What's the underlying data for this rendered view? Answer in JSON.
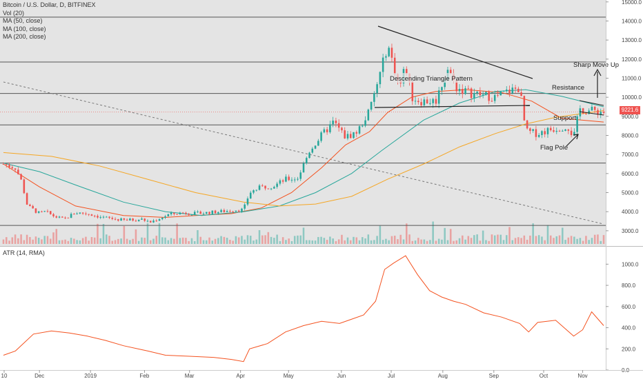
{
  "legend": {
    "symbol": "Bitcoin / U.S. Dollar, D, BITFINEX",
    "vol": "Vol (20)",
    "ma50": "MA (50, close)",
    "ma100": "MA (100, close)",
    "ma200": "MA (200, close)"
  },
  "atr_label": "ATR (14, RMA)",
  "last_price_label": "9221.6",
  "colors": {
    "up": "#26a69a",
    "down": "#ef5350",
    "ma50": "#f4511e",
    "ma100": "#26a69a",
    "ma200": "#f5a623",
    "atr": "#f4511e",
    "panel_bg": "#e4e4e4",
    "hline": "#555555"
  },
  "chart_data": [
    {
      "type": "candlestick",
      "title": "Bitcoin / U.S. Dollar, D, BITFINEX",
      "x_tick_labels": [
        "10",
        "Dec",
        "2019",
        "Feb",
        "Mar",
        "Apr",
        "May",
        "Jun",
        "Jul",
        "Aug",
        "Sep",
        "Oct",
        "Nov"
      ],
      "y_tick_labels": [
        "3000.0",
        "4000.0",
        "5000.0",
        "6000.0",
        "7000.0",
        "8000.0",
        "9000.0",
        "10000.0",
        "11000.0",
        "12000.0",
        "13000.0",
        "14000.0",
        "15000.0"
      ],
      "ylim": [
        2200,
        15100
      ],
      "last_price": 9221.6,
      "horizontal_levels": [
        14200,
        11850,
        10200,
        8550,
        6550,
        3280
      ],
      "annotations": [
        "Descending Triangle Pattern",
        "Sharp Move Up",
        "Resistance",
        "Support",
        "Flag Pole"
      ],
      "price_path": [
        [
          0,
          6500
        ],
        [
          0.02,
          6300
        ],
        [
          0.03,
          5600
        ],
        [
          0.04,
          4300
        ],
        [
          0.06,
          3900
        ],
        [
          0.07,
          4000
        ],
        [
          0.085,
          3750
        ],
        [
          0.1,
          3600
        ],
        [
          0.12,
          3950
        ],
        [
          0.14,
          3900
        ],
        [
          0.165,
          3700
        ],
        [
          0.2,
          3550
        ],
        [
          0.23,
          3600
        ],
        [
          0.245,
          3450
        ],
        [
          0.26,
          3650
        ],
        [
          0.275,
          3850
        ],
        [
          0.3,
          3950
        ],
        [
          0.32,
          3900
        ],
        [
          0.34,
          3950
        ],
        [
          0.36,
          4000
        ],
        [
          0.375,
          4050
        ],
        [
          0.385,
          4100
        ],
        [
          0.4,
          4100
        ],
        [
          0.41,
          5000
        ],
        [
          0.43,
          5300
        ],
        [
          0.45,
          5350
        ],
        [
          0.47,
          5700
        ],
        [
          0.49,
          5750
        ],
        [
          0.51,
          7200
        ],
        [
          0.53,
          8000
        ],
        [
          0.55,
          8700
        ],
        [
          0.57,
          7900
        ],
        [
          0.59,
          8200
        ],
        [
          0.61,
          9300
        ],
        [
          0.63,
          11500
        ],
        [
          0.64,
          12800
        ],
        [
          0.66,
          10500
        ],
        [
          0.67,
          11700
        ],
        [
          0.68,
          10000
        ],
        [
          0.695,
          9800
        ],
        [
          0.72,
          9800
        ],
        [
          0.74,
          11500
        ],
        [
          0.755,
          10500
        ],
        [
          0.78,
          10200
        ],
        [
          0.8,
          10100
        ],
        [
          0.82,
          10000
        ],
        [
          0.84,
          10300
        ],
        [
          0.86,
          10500
        ],
        [
          0.87,
          8200
        ],
        [
          0.89,
          8100
        ],
        [
          0.91,
          8300
        ],
        [
          0.94,
          8500
        ],
        [
          0.95,
          7900
        ],
        [
          0.96,
          9400
        ],
        [
          0.97,
          9300
        ],
        [
          0.985,
          9300
        ],
        [
          1,
          9221.6
        ]
      ],
      "ma50_path": [
        [
          0,
          6500
        ],
        [
          0.06,
          5300
        ],
        [
          0.12,
          4300
        ],
        [
          0.2,
          3800
        ],
        [
          0.27,
          3700
        ],
        [
          0.32,
          3800
        ],
        [
          0.38,
          3900
        ],
        [
          0.43,
          4200
        ],
        [
          0.48,
          5000
        ],
        [
          0.53,
          6300
        ],
        [
          0.57,
          7500
        ],
        [
          0.61,
          8200
        ],
        [
          0.64,
          9200
        ],
        [
          0.68,
          10000
        ],
        [
          0.72,
          10300
        ],
        [
          0.77,
          10400
        ],
        [
          0.83,
          10250
        ],
        [
          0.88,
          9800
        ],
        [
          0.93,
          8900
        ],
        [
          1,
          8700
        ]
      ],
      "ma100_path": [
        [
          0,
          6550
        ],
        [
          0.06,
          6100
        ],
        [
          0.12,
          5400
        ],
        [
          0.2,
          4500
        ],
        [
          0.27,
          4000
        ],
        [
          0.33,
          3800
        ],
        [
          0.4,
          4000
        ],
        [
          0.46,
          4300
        ],
        [
          0.52,
          5000
        ],
        [
          0.58,
          6000
        ],
        [
          0.63,
          7200
        ],
        [
          0.7,
          8800
        ],
        [
          0.76,
          9700
        ],
        [
          0.82,
          10300
        ],
        [
          0.87,
          10400
        ],
        [
          0.93,
          10050
        ],
        [
          1,
          9500
        ]
      ],
      "ma200_path": [
        [
          0,
          7100
        ],
        [
          0.08,
          6900
        ],
        [
          0.16,
          6400
        ],
        [
          0.24,
          5700
        ],
        [
          0.32,
          5000
        ],
        [
          0.4,
          4500
        ],
        [
          0.46,
          4300
        ],
        [
          0.52,
          4400
        ],
        [
          0.58,
          4800
        ],
        [
          0.64,
          5700
        ],
        [
          0.7,
          6500
        ],
        [
          0.76,
          7400
        ],
        [
          0.82,
          8100
        ],
        [
          0.87,
          8600
        ],
        [
          0.92,
          8950
        ],
        [
          1,
          9300
        ]
      ],
      "trendline_dashed": [
        [
          0,
          10800
        ],
        [
          1,
          3350
        ]
      ]
    },
    {
      "type": "line",
      "title": "ATR (14, RMA)",
      "y_tick_labels": [
        "0.0",
        "200.0",
        "400.0",
        "600.0",
        "800.0",
        "1000.0"
      ],
      "ylim": [
        0,
        1100
      ],
      "x": [
        0,
        0.02,
        0.05,
        0.08,
        0.11,
        0.14,
        0.17,
        0.2,
        0.24,
        0.27,
        0.31,
        0.35,
        0.38,
        0.4,
        0.41,
        0.44,
        0.47,
        0.5,
        0.53,
        0.56,
        0.6,
        0.62,
        0.635,
        0.65,
        0.67,
        0.69,
        0.71,
        0.73,
        0.75,
        0.77,
        0.8,
        0.83,
        0.86,
        0.875,
        0.89,
        0.92,
        0.95,
        0.965,
        0.98,
        1
      ],
      "values": [
        140,
        180,
        340,
        370,
        350,
        320,
        280,
        230,
        180,
        140,
        130,
        120,
        100,
        80,
        200,
        250,
        360,
        420,
        460,
        440,
        520,
        650,
        950,
        1010,
        1080,
        900,
        750,
        690,
        650,
        620,
        540,
        500,
        440,
        360,
        450,
        470,
        320,
        380,
        550,
        420
      ]
    }
  ]
}
